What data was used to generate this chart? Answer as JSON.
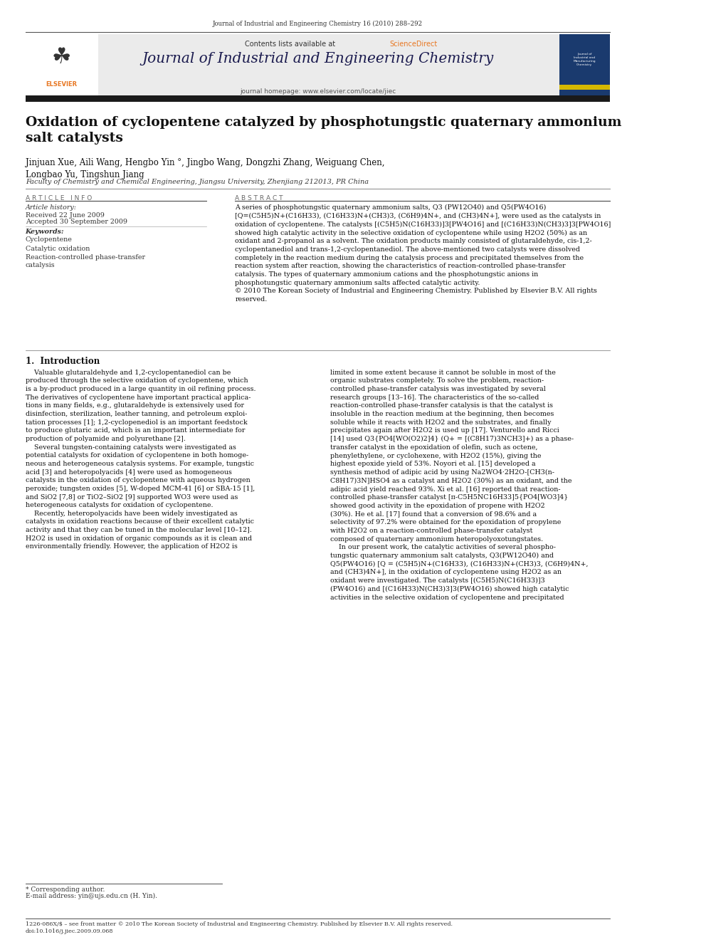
{
  "page_width": 9.92,
  "page_height": 13.23,
  "bg_color": "#ffffff",
  "top_journal_ref": "Journal of Industrial and Engineering Chemistry 16 (2010) 288–292",
  "header_bg": "#e8e8e8",
  "header_text": "Contents lists available at ScienceDirect",
  "sciencedirect_color": "#e87722",
  "journal_title": "Journal of Industrial and Engineering Chemistry",
  "journal_homepage": "journal homepage: www.elsevier.com/locate/jiec",
  "article_title": "Oxidation of cyclopentene catalyzed by phosphotungstic quaternary ammonium\nsalt catalysts",
  "authors": "Jinjuan Xue, Aili Wang, Hengbo Yin °, Jingbo Wang, Dongzhi Zhang, Weiguang Chen,\nLongbao Yu, Tingshun Jiang",
  "affiliation": "Faculty of Chemistry and Chemical Engineering, Jiangsu University, Zhenjiang 212013, PR China",
  "article_info_header": "ARTICLE INFO",
  "article_history_label": "Article history:",
  "received_text": "Received 22 June 2009",
  "accepted_text": "Accepted 30 September 2009",
  "keywords_label": "Keywords:",
  "keywords": [
    "Cyclopentene",
    "Catalytic oxidation",
    "Reaction-controlled phase-transfer\ncatalysis"
  ],
  "abstract_header": "ABSTRACT",
  "abstract_text": "A series of phosphotungstic quaternary ammonium salts, Q3 (PW12O40) and Q5(PW4O16)\n[Q=(C5H5)N+(C16H33), (C16H33)N+(CH3)3, (C6H9)4N+, and (CH3)4N+], were used as the catalysts in\noxidation of cyclopentene. The catalysts [(C5H5)N(C16H33)]3[PW4O16] and [(C16H33)N(CH3)3]3[PW4O16]\nshowed high catalytic activity in the selective oxidation of cyclopentene while using H2O2 (50%) as an\noxidant and 2-propanol as a solvent. The oxidation products mainly consisted of glutaraldehyde, cis-1,2-\ncyclopentanediol and trans-1,2-cyclopentanediol. The above-mentioned two catalysts were dissolved\ncompletely in the reaction medium during the catalysis process and precipitated themselves from the\nreaction system after reaction, showing the characteristics of reaction-controlled phase-transfer\ncatalysis. The types of quaternary ammonium cations and the phosphotungstic anions in\nphosphotungstic quaternary ammonium salts affected catalytic activity.\n© 2010 The Korean Society of Industrial and Engineering Chemistry. Published by Elsevier B.V. All rights\nreserved.",
  "section1_title": "1.  Introduction",
  "intro_col1": "    Valuable glutaraldehyde and 1,2-cyclopentanediol can be\nproduced through the selective oxidation of cyclopentene, which\nis a by-product produced in a large quantity in oil refining process.\nThe derivatives of cyclopentene have important practical applica-\ntions in many fields, e.g., glutaraldehyde is extensively used for\ndisinfection, sterilization, leather tanning, and petroleum exploi-\ntation processes [1]; 1,2-cyclopenediol is an important feedstock\nto produce glutaric acid, which is an important intermediate for\nproduction of polyamide and polyurethane [2].\n    Several tungsten-containing catalysts were investigated as\npotential catalysts for oxidation of cyclopentene in both homoge-\nneous and heterogeneous catalysis systems. For example, tungstic\nacid [3] and heteropolyacids [4] were used as homogeneous\ncatalysts in the oxidation of cyclopentene with aqueous hydrogen\nperoxide; tungsten oxides [5], W-doped MCM-41 [6] or SBA-15 [1],\nand SiO2 [7,8] or TiO2–SiO2 [9] supported WO3 were used as\nheterogeneous catalysts for oxidation of cyclopentene.\n    Recently, heteropolyacids have been widely investigated as\ncatalysts in oxidation reactions because of their excellent catalytic\nactivity and that they can be tuned in the molecular level [10–12].\nH2O2 is used in oxidation of organic compounds as it is clean and\nenvironmentally friendly. However, the application of H2O2 is",
  "intro_col2": "limited in some extent because it cannot be soluble in most of the\norganic substrates completely. To solve the problem, reaction-\ncontrolled phase-transfer catalysis was investigated by several\nresearch groups [13–16]. The characteristics of the so-called\nreaction-controlled phase-transfer catalysis is that the catalyst is\ninsoluble in the reaction medium at the beginning, then becomes\nsoluble while it reacts with H2O2 and the substrates, and finally\nprecipitates again after H2O2 is used up [17]. Venturello and Ricci\n[14] used Q3{PO4[WO(O2)2]4} (Q+ = [(C8H17)3NCH3]+) as a phase-\ntransfer catalyst in the epoxidation of olefin, such as octene,\nphenylethylene, or cyclohexene, with H2O2 (15%), giving the\nhighest epoxide yield of 53%. Noyori et al. [15] developed a\nsynthesis method of adipic acid by using Na2WO4·2H2O-[CH3(n-\nC8H17)3N]HSO4 as a catalyst and H2O2 (30%) as an oxidant, and the\nadipic acid yield reached 93%. Xi et al. [16] reported that reaction-\ncontrolled phase-transfer catalyst [π-C5H5NC16H33]5{PO4[WO3]4}\nshowed good activity in the epoxidation of propene with H2O2\n(30%). He et al. [17] found that a conversion of 98.6% and a\nselectivity of 97.2% were obtained for the epoxidation of propylene\nwith H2O2 on a reaction-controlled phase-transfer catalyst\ncomposed of quaternary ammonium heteropolyoxotungstates.\n    In our present work, the catalytic activities of several phospho-\ntungstic quaternary ammonium salt catalysts, Q3(PW12O40) and\nQ5(PW4O16) [Q = (C5H5)N+(C16H33), (C16H33)N+(CH3)3, (C6H9)4N+,\nand (CH3)4N+], in the oxidation of cyclopentene using H2O2 as an\noxidant were investigated. The catalysts [(C5H5)N(C16H33)]3\n(PW4O16) and [(C16H33)N(CH3)3]3(PW4O16) showed high catalytic\nactivities in the selective oxidation of cyclopentene and precipitated",
  "footnote_star": "* Corresponding author.",
  "footnote_email": "E-mail address: yin@ujs.edu.cn (H. Yin).",
  "footer_text": "1226-086X/$ – see front matter © 2010 The Korean Society of Industrial and Engineering Chemistry. Published by Elsevier B.V. All rights reserved.\ndoi:10.1016/j.jiec.2009.09.068"
}
